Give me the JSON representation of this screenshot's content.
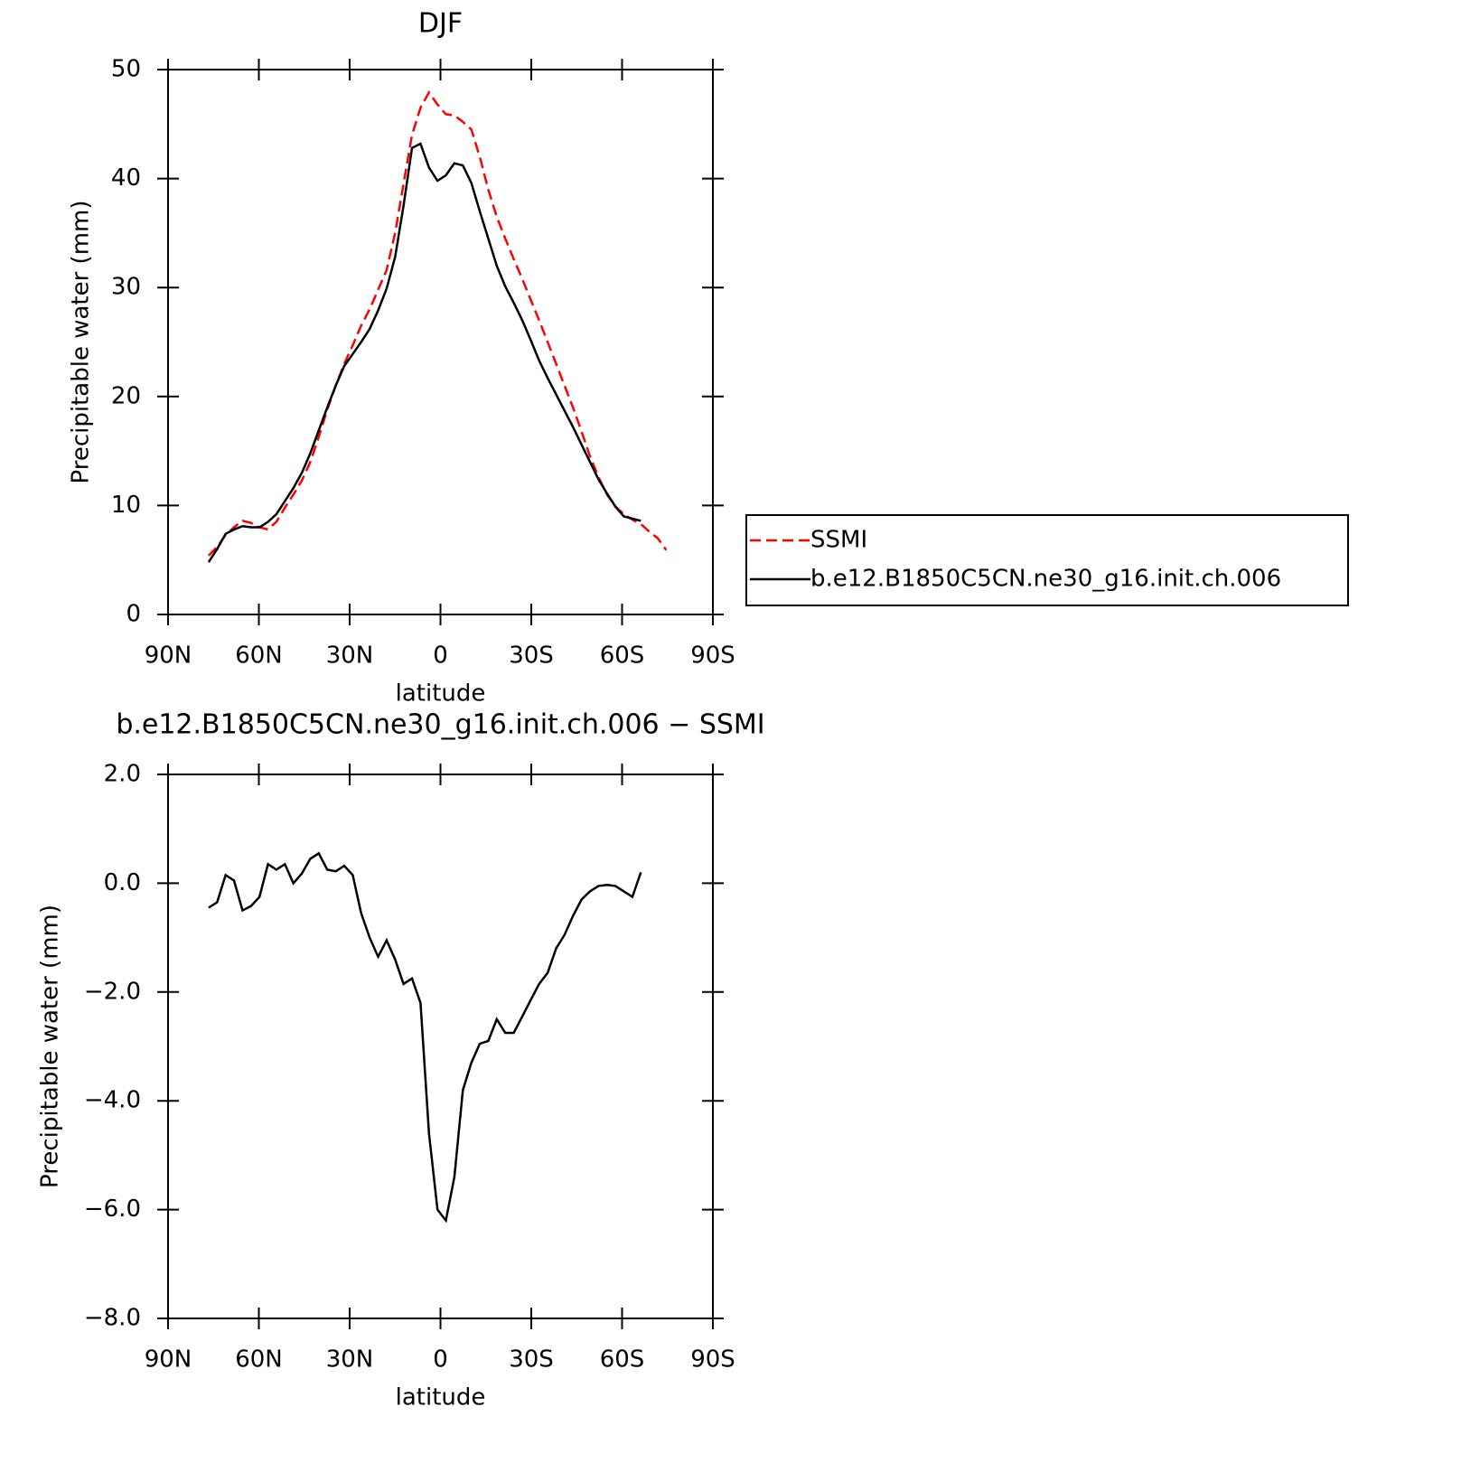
{
  "chart_data": [
    {
      "type": "line",
      "title": "DJF",
      "x_label": "latitude",
      "y_label": "Precipitable water (mm)",
      "x": [
        76.6,
        73.8,
        71.0,
        68.2,
        65.4,
        62.6,
        59.8,
        57.0,
        54.2,
        51.4,
        48.6,
        45.8,
        43.0,
        40.2,
        37.4,
        34.6,
        31.8,
        29.0,
        26.2,
        23.4,
        20.6,
        17.8,
        15.0,
        12.2,
        9.4,
        6.6,
        3.8,
        1.0,
        -1.8,
        -4.6,
        -7.4,
        -10.2,
        -13.0,
        -15.8,
        -18.6,
        -21.4,
        -24.2,
        -27.0,
        -29.8,
        -32.6,
        -35.4,
        -38.2,
        -41.0,
        -43.8,
        -46.6,
        -49.4,
        -52.2,
        -55.0,
        -57.8,
        -60.6,
        -63.4,
        -66.2,
        -69.0,
        -71.8,
        -74.6
      ],
      "xlim": [
        90,
        -90
      ],
      "xticks": [
        {
          "value": 90,
          "label": "90N"
        },
        {
          "value": 60,
          "label": "60N"
        },
        {
          "value": 30,
          "label": "30N"
        },
        0,
        {
          "value": -30,
          "label": "30S"
        },
        {
          "value": -60,
          "label": "60S"
        },
        {
          "value": -90,
          "label": "90S"
        }
      ],
      "ylim": [
        0,
        50
      ],
      "yticks": [
        0,
        10,
        20,
        30,
        40,
        50
      ],
      "grid": false,
      "legend": "right",
      "series": [
        {
          "name": "SSMI",
          "color": "#ff0000",
          "dash": true,
          "values": [
            5.4,
            6.2,
            7.3,
            8.0,
            8.6,
            8.4,
            8.0,
            7.8,
            8.5,
            9.8,
            11.0,
            12.3,
            14.0,
            16.3,
            18.8,
            21.0,
            23.0,
            24.7,
            26.5,
            28.0,
            29.8,
            31.6,
            35.0,
            39.5,
            44.0,
            46.5,
            47.9,
            46.8,
            45.9,
            45.8,
            45.2,
            44.5,
            42.0,
            39.0,
            36.5,
            34.5,
            32.6,
            30.8,
            28.9,
            27.0,
            25.0,
            23.0,
            21.0,
            19.0,
            16.8,
            14.5,
            12.6,
            11.0,
            9.9,
            9.2,
            8.7,
            8.3,
            7.6,
            7.0,
            5.9
          ]
        },
        {
          "name": "b.e12.B1850C5CN.ne30_g16.init.ch.006",
          "color": "#000000",
          "dash": false,
          "values": [
            4.8,
            6.0,
            7.4,
            7.8,
            8.1,
            8.0,
            8.0,
            8.5,
            9.2,
            10.4,
            11.6,
            13.0,
            14.8,
            16.9,
            19.0,
            21.0,
            22.8,
            23.9,
            25.0,
            26.2,
            27.9,
            29.9,
            32.8,
            37.5,
            42.8,
            43.2,
            41.0,
            39.8,
            40.3,
            41.4,
            41.2,
            39.6,
            37.0,
            34.5,
            32.0,
            30.1,
            28.6,
            27.0,
            25.2,
            23.3,
            21.7,
            20.2,
            18.7,
            17.2,
            15.6,
            14.0,
            12.4,
            11.1,
            9.9,
            9.0,
            8.8,
            8.6,
            null,
            null,
            null
          ]
        }
      ]
    },
    {
      "type": "line",
      "title": "b.e12.B1850C5CN.ne30_g16.init.ch.006 − SSMI",
      "x_label": "latitude",
      "y_label": "Precipitable water (mm)",
      "x": [
        76.6,
        73.8,
        71.0,
        68.2,
        65.4,
        62.6,
        59.8,
        57.0,
        54.2,
        51.4,
        48.6,
        45.8,
        43.0,
        40.2,
        37.4,
        34.6,
        31.8,
        29.0,
        26.2,
        23.4,
        20.6,
        17.8,
        15.0,
        12.2,
        9.4,
        6.6,
        3.8,
        1.0,
        -1.8,
        -4.6,
        -7.4,
        -10.2,
        -13.0,
        -15.8,
        -18.6,
        -21.4,
        -24.2,
        -27.0,
        -29.8,
        -32.6,
        -35.4,
        -38.2,
        -41.0,
        -43.8,
        -46.6,
        -49.4,
        -52.2,
        -55.0,
        -57.8,
        -60.6,
        -63.4,
        -66.2
      ],
      "xlim": [
        90,
        -90
      ],
      "xticks": [
        {
          "value": 90,
          "label": "90N"
        },
        {
          "value": 60,
          "label": "60N"
        },
        {
          "value": 30,
          "label": "30N"
        },
        0,
        {
          "value": -30,
          "label": "30S"
        },
        {
          "value": -60,
          "label": "60S"
        },
        {
          "value": -90,
          "label": "90S"
        }
      ],
      "ylim": [
        -8,
        2
      ],
      "yticks": [
        {
          "value": 2,
          "label": "2.0"
        },
        {
          "value": 0,
          "label": "0.0"
        },
        {
          "value": -2,
          "label": "−2.0"
        },
        {
          "value": -4,
          "label": "−4.0"
        },
        {
          "value": -6,
          "label": "−6.0"
        },
        {
          "value": -8,
          "label": "−8.0"
        }
      ],
      "grid": false,
      "series": [
        {
          "color": "#000000",
          "dash": false,
          "values": [
            -0.45,
            -0.35,
            0.15,
            0.05,
            -0.5,
            -0.42,
            -0.25,
            0.35,
            0.25,
            0.35,
            0.0,
            0.18,
            0.45,
            0.55,
            0.25,
            0.22,
            0.32,
            0.15,
            -0.55,
            -1.0,
            -1.35,
            -1.05,
            -1.4,
            -1.85,
            -1.75,
            -2.2,
            -4.6,
            -6.0,
            -6.2,
            -5.4,
            -3.8,
            -3.3,
            -2.95,
            -2.9,
            -2.5,
            -2.75,
            -2.75,
            -2.45,
            -2.15,
            -1.85,
            -1.65,
            -1.2,
            -0.95,
            -0.6,
            -0.3,
            -0.15,
            -0.05,
            -0.03,
            -0.05,
            -0.15,
            -0.25,
            0.2
          ]
        }
      ]
    }
  ]
}
